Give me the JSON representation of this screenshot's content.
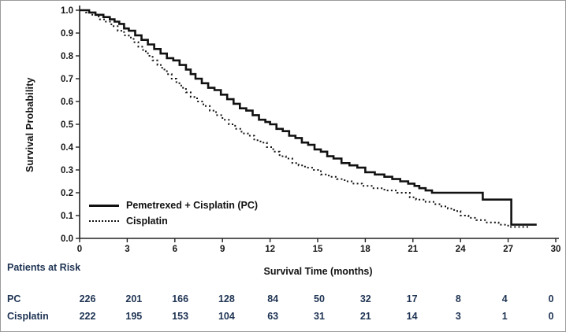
{
  "chart_data": {
    "type": "line",
    "subtype": "kaplan-meier-step",
    "title": "",
    "ylabel": "Survival Probability",
    "xlabel": "Survival Time (months)",
    "xlim": [
      0,
      30
    ],
    "ylim": [
      0,
      1
    ],
    "grid": false,
    "legend_position": "lower-left-inside",
    "xticks": [
      0,
      3,
      6,
      9,
      12,
      15,
      18,
      21,
      24,
      27,
      30
    ],
    "yticks": [
      0.0,
      0.1,
      0.2,
      0.3,
      0.4,
      0.5,
      0.6,
      0.7,
      0.8,
      0.9,
      1.0
    ],
    "ytick_labels": [
      "0.0",
      "0.1",
      "0.2",
      "0.3",
      "0.4",
      "0.5",
      "0.6",
      "0.7",
      "0.8",
      "0.9",
      "1.0"
    ],
    "colors": {
      "curve": "#111111",
      "axis": "#222222",
      "risk_text": "#1e3353"
    },
    "series": [
      {
        "name": "Pemetrexed + Cisplatin (PC)",
        "style": "solid",
        "points": [
          [
            0,
            1.0
          ],
          [
            0.6,
            0.99
          ],
          [
            1.0,
            0.98
          ],
          [
            1.5,
            0.97
          ],
          [
            1.9,
            0.96
          ],
          [
            2.2,
            0.95
          ],
          [
            2.5,
            0.94
          ],
          [
            2.8,
            0.92
          ],
          [
            3.1,
            0.91
          ],
          [
            3.5,
            0.89
          ],
          [
            3.9,
            0.87
          ],
          [
            4.3,
            0.85
          ],
          [
            4.7,
            0.83
          ],
          [
            5.1,
            0.81
          ],
          [
            5.5,
            0.79
          ],
          [
            5.9,
            0.78
          ],
          [
            6.3,
            0.76
          ],
          [
            6.7,
            0.74
          ],
          [
            7.0,
            0.72
          ],
          [
            7.3,
            0.7
          ],
          [
            7.7,
            0.68
          ],
          [
            8.1,
            0.66
          ],
          [
            8.5,
            0.65
          ],
          [
            8.9,
            0.63
          ],
          [
            9.3,
            0.61
          ],
          [
            9.7,
            0.59
          ],
          [
            10.1,
            0.57
          ],
          [
            10.5,
            0.56
          ],
          [
            10.9,
            0.54
          ],
          [
            11.3,
            0.52
          ],
          [
            11.7,
            0.51
          ],
          [
            12.0,
            0.5
          ],
          [
            12.4,
            0.48
          ],
          [
            12.8,
            0.47
          ],
          [
            13.2,
            0.45
          ],
          [
            13.6,
            0.44
          ],
          [
            14.0,
            0.42
          ],
          [
            14.4,
            0.41
          ],
          [
            14.8,
            0.39
          ],
          [
            15.2,
            0.38
          ],
          [
            15.6,
            0.36
          ],
          [
            16.0,
            0.35
          ],
          [
            16.5,
            0.33
          ],
          [
            17.0,
            0.32
          ],
          [
            17.5,
            0.31
          ],
          [
            18.0,
            0.29
          ],
          [
            18.6,
            0.28
          ],
          [
            19.2,
            0.27
          ],
          [
            19.7,
            0.26
          ],
          [
            20.2,
            0.25
          ],
          [
            20.7,
            0.24
          ],
          [
            21.1,
            0.23
          ],
          [
            21.4,
            0.22
          ],
          [
            21.8,
            0.21
          ],
          [
            22.2,
            0.2
          ],
          [
            25.4,
            0.17
          ],
          [
            27.2,
            0.06
          ],
          [
            28.8,
            0.06
          ]
        ]
      },
      {
        "name": "Cisplatin",
        "style": "dotted",
        "points": [
          [
            0,
            1.0
          ],
          [
            0.4,
            0.99
          ],
          [
            0.8,
            0.98
          ],
          [
            1.2,
            0.96
          ],
          [
            1.6,
            0.95
          ],
          [
            2.0,
            0.93
          ],
          [
            2.4,
            0.91
          ],
          [
            2.8,
            0.89
          ],
          [
            3.1,
            0.88
          ],
          [
            3.4,
            0.86
          ],
          [
            3.7,
            0.84
          ],
          [
            4.0,
            0.82
          ],
          [
            4.3,
            0.8
          ],
          [
            4.6,
            0.78
          ],
          [
            4.9,
            0.76
          ],
          [
            5.2,
            0.74
          ],
          [
            5.5,
            0.72
          ],
          [
            5.8,
            0.7
          ],
          [
            6.1,
            0.68
          ],
          [
            6.4,
            0.66
          ],
          [
            6.7,
            0.64
          ],
          [
            7.0,
            0.62
          ],
          [
            7.4,
            0.6
          ],
          [
            7.8,
            0.58
          ],
          [
            8.2,
            0.56
          ],
          [
            8.6,
            0.54
          ],
          [
            9.0,
            0.52
          ],
          [
            9.4,
            0.5
          ],
          [
            9.8,
            0.48
          ],
          [
            10.2,
            0.46
          ],
          [
            10.6,
            0.45
          ],
          [
            11.0,
            0.43
          ],
          [
            11.4,
            0.42
          ],
          [
            11.8,
            0.4
          ],
          [
            12.2,
            0.38
          ],
          [
            12.6,
            0.36
          ],
          [
            13.0,
            0.35
          ],
          [
            13.4,
            0.33
          ],
          [
            13.8,
            0.32
          ],
          [
            14.2,
            0.31
          ],
          [
            14.7,
            0.3
          ],
          [
            15.2,
            0.28
          ],
          [
            15.7,
            0.27
          ],
          [
            16.2,
            0.26
          ],
          [
            16.7,
            0.25
          ],
          [
            17.2,
            0.24
          ],
          [
            17.8,
            0.23
          ],
          [
            18.4,
            0.22
          ],
          [
            19.2,
            0.21
          ],
          [
            20.0,
            0.2
          ],
          [
            20.8,
            0.18
          ],
          [
            21.2,
            0.17
          ],
          [
            21.8,
            0.16
          ],
          [
            22.3,
            0.15
          ],
          [
            22.8,
            0.14
          ],
          [
            23.2,
            0.13
          ],
          [
            23.6,
            0.12
          ],
          [
            24.0,
            0.1
          ],
          [
            24.5,
            0.09
          ],
          [
            25.0,
            0.08
          ],
          [
            25.6,
            0.07
          ],
          [
            26.4,
            0.06
          ],
          [
            27.0,
            0.05
          ],
          [
            28.3,
            0.05
          ]
        ]
      }
    ],
    "risk_table": {
      "title": "Patients at Risk",
      "time_points": [
        0,
        3,
        6,
        9,
        12,
        15,
        18,
        21,
        24,
        27,
        30
      ],
      "rows": [
        {
          "label": "PC",
          "counts": [
            226,
            201,
            166,
            128,
            84,
            50,
            32,
            17,
            8,
            4,
            0
          ]
        },
        {
          "label": "Cisplatin",
          "counts": [
            222,
            195,
            153,
            104,
            63,
            31,
            21,
            14,
            3,
            1,
            0
          ]
        }
      ]
    }
  }
}
